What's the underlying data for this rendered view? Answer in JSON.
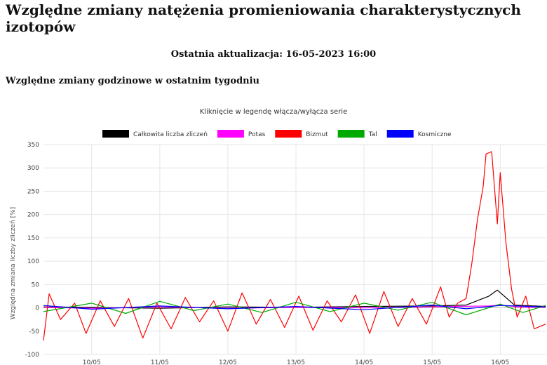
{
  "page": {
    "title": "Względne zmiany natężenia promieniowania charakterystycznych izotopów",
    "last_update": "Ostatnia aktualizacja: 16-05-2023 16:00",
    "section_title": "Względne zmiany godzinowe w ostatnim tygodniu"
  },
  "chart_data": {
    "type": "line",
    "title": "Kliknięcie w legendę włącza/wyłącza serie",
    "xlabel": "",
    "ylabel": "Względna zmiana liczby zliczeń [%]",
    "ylim": [
      -100,
      350
    ],
    "yticks": [
      -100,
      -50,
      0,
      50,
      100,
      150,
      200,
      250,
      300,
      350
    ],
    "grid": true,
    "legend_position": "top",
    "x_range": [
      "2023-05-09T07:00",
      "2023-05-16T16:00"
    ],
    "x_ticks": [
      "10/05",
      "11/05",
      "12/05",
      "13/05",
      "14/05",
      "15/05",
      "16/05"
    ],
    "series": [
      {
        "name": "Całkowita liczba zliczeń",
        "color": "#000000",
        "points": [
          [
            "2023-05-09T07:00",
            2
          ],
          [
            "2023-05-10T00:00",
            1
          ],
          [
            "2023-05-11T00:00",
            -1
          ],
          [
            "2023-05-12T00:00",
            2
          ],
          [
            "2023-05-13T00:00",
            1
          ],
          [
            "2023-05-14T00:00",
            3
          ],
          [
            "2023-05-15T00:00",
            4
          ],
          [
            "2023-05-15T12:00",
            6
          ],
          [
            "2023-05-15T20:00",
            25
          ],
          [
            "2023-05-15T23:00",
            38
          ],
          [
            "2023-05-16T02:00",
            22
          ],
          [
            "2023-05-16T05:00",
            6
          ],
          [
            "2023-05-16T16:00",
            3
          ]
        ]
      },
      {
        "name": "Potas",
        "color": "#ff00ff",
        "points": [
          [
            "2023-05-09T07:00",
            1
          ],
          [
            "2023-05-10T00:00",
            -1
          ],
          [
            "2023-05-11T00:00",
            2
          ],
          [
            "2023-05-12T00:00",
            -1
          ],
          [
            "2023-05-13T00:00",
            1
          ],
          [
            "2023-05-14T00:00",
            0
          ],
          [
            "2023-05-15T00:00",
            2
          ],
          [
            "2023-05-15T20:00",
            4
          ],
          [
            "2023-05-16T00:00",
            6
          ],
          [
            "2023-05-16T06:00",
            2
          ],
          [
            "2023-05-16T16:00",
            1
          ]
        ]
      },
      {
        "name": "Bizmut",
        "color": "#ff0000",
        "points": [
          [
            "2023-05-09T07:00",
            -70
          ],
          [
            "2023-05-09T09:00",
            30
          ],
          [
            "2023-05-09T13:00",
            -25
          ],
          [
            "2023-05-09T18:00",
            10
          ],
          [
            "2023-05-09T22:00",
            -55
          ],
          [
            "2023-05-10T03:00",
            15
          ],
          [
            "2023-05-10T08:00",
            -40
          ],
          [
            "2023-05-10T13:00",
            20
          ],
          [
            "2023-05-10T18:00",
            -65
          ],
          [
            "2023-05-10T23:00",
            10
          ],
          [
            "2023-05-11T04:00",
            -45
          ],
          [
            "2023-05-11T09:00",
            22
          ],
          [
            "2023-05-11T14:00",
            -30
          ],
          [
            "2023-05-11T19:00",
            15
          ],
          [
            "2023-05-12T00:00",
            -50
          ],
          [
            "2023-05-12T05:00",
            32
          ],
          [
            "2023-05-12T10:00",
            -35
          ],
          [
            "2023-05-12T15:00",
            18
          ],
          [
            "2023-05-12T20:00",
            -42
          ],
          [
            "2023-05-13T01:00",
            25
          ],
          [
            "2023-05-13T06:00",
            -48
          ],
          [
            "2023-05-13T11:00",
            15
          ],
          [
            "2023-05-13T16:00",
            -30
          ],
          [
            "2023-05-13T21:00",
            28
          ],
          [
            "2023-05-14T02:00",
            -55
          ],
          [
            "2023-05-14T07:00",
            35
          ],
          [
            "2023-05-14T12:00",
            -40
          ],
          [
            "2023-05-14T17:00",
            20
          ],
          [
            "2023-05-14T22:00",
            -35
          ],
          [
            "2023-05-15T03:00",
            45
          ],
          [
            "2023-05-15T06:00",
            -20
          ],
          [
            "2023-05-15T09:00",
            10
          ],
          [
            "2023-05-15T12:00",
            20
          ],
          [
            "2023-05-15T14:00",
            95
          ],
          [
            "2023-05-15T16:00",
            190
          ],
          [
            "2023-05-15T18:00",
            260
          ],
          [
            "2023-05-15T19:00",
            330
          ],
          [
            "2023-05-15T21:00",
            335
          ],
          [
            "2023-05-15T23:00",
            180
          ],
          [
            "2023-05-16T00:00",
            290
          ],
          [
            "2023-05-16T02:00",
            140
          ],
          [
            "2023-05-16T04:00",
            40
          ],
          [
            "2023-05-16T06:00",
            -20
          ],
          [
            "2023-05-16T09:00",
            25
          ],
          [
            "2023-05-16T12:00",
            -45
          ],
          [
            "2023-05-16T16:00",
            -35
          ]
        ]
      },
      {
        "name": "Tal",
        "color": "#00aa00",
        "points": [
          [
            "2023-05-09T07:00",
            -8
          ],
          [
            "2023-05-10T00:00",
            10
          ],
          [
            "2023-05-10T12:00",
            -12
          ],
          [
            "2023-05-11T00:00",
            14
          ],
          [
            "2023-05-11T12:00",
            -6
          ],
          [
            "2023-05-12T00:00",
            8
          ],
          [
            "2023-05-12T12:00",
            -10
          ],
          [
            "2023-05-13T00:00",
            12
          ],
          [
            "2023-05-13T12:00",
            -8
          ],
          [
            "2023-05-14T00:00",
            10
          ],
          [
            "2023-05-14T12:00",
            -5
          ],
          [
            "2023-05-15T00:00",
            12
          ],
          [
            "2023-05-15T12:00",
            -15
          ],
          [
            "2023-05-16T00:00",
            8
          ],
          [
            "2023-05-16T08:00",
            -10
          ],
          [
            "2023-05-16T16:00",
            5
          ]
        ]
      },
      {
        "name": "Kosmiczne",
        "color": "#0000ff",
        "points": [
          [
            "2023-05-09T07:00",
            5
          ],
          [
            "2023-05-10T00:00",
            -3
          ],
          [
            "2023-05-11T00:00",
            4
          ],
          [
            "2023-05-12T00:00",
            -2
          ],
          [
            "2023-05-13T00:00",
            3
          ],
          [
            "2023-05-14T00:00",
            -4
          ],
          [
            "2023-05-15T00:00",
            6
          ],
          [
            "2023-05-15T12:00",
            -2
          ],
          [
            "2023-05-16T00:00",
            5
          ],
          [
            "2023-05-16T16:00",
            2
          ]
        ]
      }
    ]
  }
}
